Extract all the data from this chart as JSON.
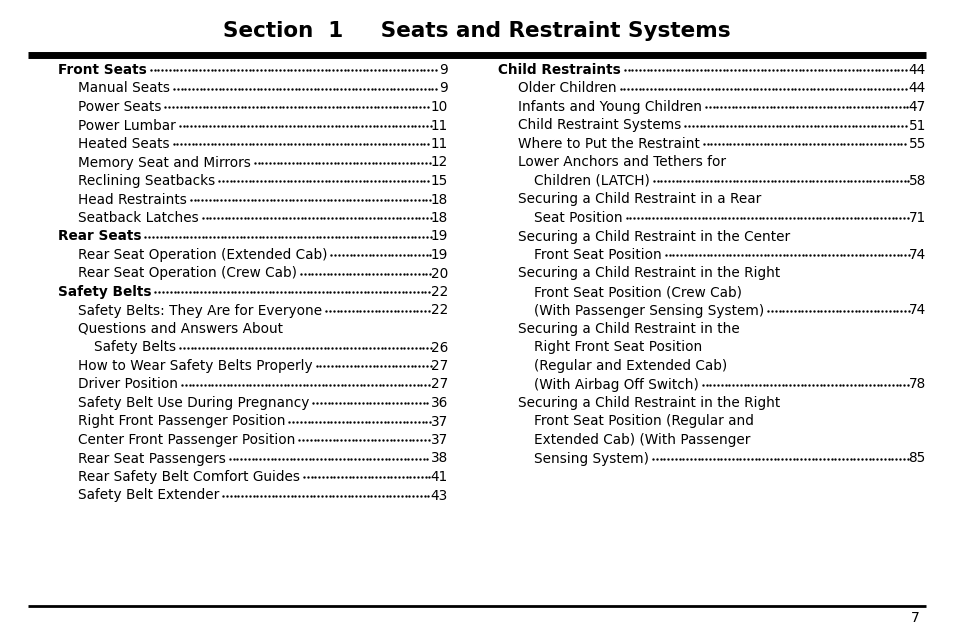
{
  "title": "Section  1     Seats and Restraint Systems",
  "background_color": "#ffffff",
  "text_color": "#000000",
  "page_number": "7",
  "left_column": [
    {
      "text": "Front Seats",
      "bold": true,
      "indent": 0,
      "dots": true,
      "page": "9"
    },
    {
      "text": "Manual Seats",
      "bold": false,
      "indent": 1,
      "dots": true,
      "page": "9"
    },
    {
      "text": "Power Seats",
      "bold": false,
      "indent": 1,
      "dots": true,
      "page": "10"
    },
    {
      "text": "Power Lumbar",
      "bold": false,
      "indent": 1,
      "dots": true,
      "page": "11"
    },
    {
      "text": "Heated Seats",
      "bold": false,
      "indent": 1,
      "dots": true,
      "page": "11"
    },
    {
      "text": "Memory Seat and Mirrors",
      "bold": false,
      "indent": 1,
      "dots": true,
      "page": "12"
    },
    {
      "text": "Reclining Seatbacks",
      "bold": false,
      "indent": 1,
      "dots": true,
      "page": "15"
    },
    {
      "text": "Head Restraints",
      "bold": false,
      "indent": 1,
      "dots": true,
      "page": "18"
    },
    {
      "text": "Seatback Latches",
      "bold": false,
      "indent": 1,
      "dots": true,
      "page": "18"
    },
    {
      "text": "Rear Seats",
      "bold": true,
      "indent": 0,
      "dots": true,
      "page": "19"
    },
    {
      "text": "Rear Seat Operation (Extended Cab)",
      "bold": false,
      "indent": 1,
      "dots": true,
      "page": "19"
    },
    {
      "text": "Rear Seat Operation (Crew Cab)",
      "bold": false,
      "indent": 1,
      "dots": true,
      "page": "20"
    },
    {
      "text": "Safety Belts",
      "bold": true,
      "indent": 0,
      "dots": true,
      "page": "22"
    },
    {
      "text": "Safety Belts: They Are for Everyone",
      "bold": false,
      "indent": 1,
      "dots": true,
      "page": "22"
    },
    {
      "text": "Questions and Answers About",
      "bold": false,
      "indent": 1,
      "dots": false,
      "page": ""
    },
    {
      "text": "Safety Belts",
      "bold": false,
      "indent": 2,
      "dots": true,
      "page": "26"
    },
    {
      "text": "How to Wear Safety Belts Properly",
      "bold": false,
      "indent": 1,
      "dots": true,
      "page": "27"
    },
    {
      "text": "Driver Position",
      "bold": false,
      "indent": 1,
      "dots": true,
      "page": "27"
    },
    {
      "text": "Safety Belt Use During Pregnancy",
      "bold": false,
      "indent": 1,
      "dots": true,
      "page": "36"
    },
    {
      "text": "Right Front Passenger Position",
      "bold": false,
      "indent": 1,
      "dots": true,
      "page": "37"
    },
    {
      "text": "Center Front Passenger Position",
      "bold": false,
      "indent": 1,
      "dots": true,
      "page": "37"
    },
    {
      "text": "Rear Seat Passengers",
      "bold": false,
      "indent": 1,
      "dots": true,
      "page": "38"
    },
    {
      "text": "Rear Safety Belt Comfort Guides",
      "bold": false,
      "indent": 1,
      "dots": true,
      "page": "41"
    },
    {
      "text": "Safety Belt Extender",
      "bold": false,
      "indent": 1,
      "dots": true,
      "page": "43"
    }
  ],
  "right_column": [
    {
      "text": "Child Restraints",
      "bold": true,
      "indent": 0,
      "dots": true,
      "page": "44"
    },
    {
      "text": "Older Children",
      "bold": false,
      "indent": 1,
      "dots": true,
      "page": "44"
    },
    {
      "text": "Infants and Young Children",
      "bold": false,
      "indent": 1,
      "dots": true,
      "page": "47"
    },
    {
      "text": "Child Restraint Systems",
      "bold": false,
      "indent": 1,
      "dots": true,
      "page": "51"
    },
    {
      "text": "Where to Put the Restraint",
      "bold": false,
      "indent": 1,
      "dots": true,
      "page": "55"
    },
    {
      "text": "Lower Anchors and Tethers for",
      "bold": false,
      "indent": 1,
      "dots": false,
      "page": ""
    },
    {
      "text": "Children (LATCH)",
      "bold": false,
      "indent": 2,
      "dots": true,
      "page": "58"
    },
    {
      "text": "Securing a Child Restraint in a Rear",
      "bold": false,
      "indent": 1,
      "dots": false,
      "page": ""
    },
    {
      "text": "Seat Position",
      "bold": false,
      "indent": 2,
      "dots": true,
      "page": "71"
    },
    {
      "text": "Securing a Child Restraint in the Center",
      "bold": false,
      "indent": 1,
      "dots": false,
      "page": ""
    },
    {
      "text": "Front Seat Position",
      "bold": false,
      "indent": 2,
      "dots": true,
      "page": "74"
    },
    {
      "text": "Securing a Child Restraint in the Right",
      "bold": false,
      "indent": 1,
      "dots": false,
      "page": ""
    },
    {
      "text": "Front Seat Position (Crew Cab)",
      "bold": false,
      "indent": 2,
      "dots": false,
      "page": ""
    },
    {
      "text": "(With Passenger Sensing System)",
      "bold": false,
      "indent": 2,
      "dots": true,
      "page": "74"
    },
    {
      "text": "Securing a Child Restraint in the",
      "bold": false,
      "indent": 1,
      "dots": false,
      "page": ""
    },
    {
      "text": "Right Front Seat Position",
      "bold": false,
      "indent": 2,
      "dots": false,
      "page": ""
    },
    {
      "text": "(Regular and Extended Cab)",
      "bold": false,
      "indent": 2,
      "dots": false,
      "page": ""
    },
    {
      "text": "(With Airbag Off Switch)",
      "bold": false,
      "indent": 2,
      "dots": true,
      "page": "78"
    },
    {
      "text": "Securing a Child Restraint in the Right",
      "bold": false,
      "indent": 1,
      "dots": false,
      "page": ""
    },
    {
      "text": "Front Seat Position (Regular and",
      "bold": false,
      "indent": 2,
      "dots": false,
      "page": ""
    },
    {
      "text": "Extended Cab) (With Passenger",
      "bold": false,
      "indent": 2,
      "dots": false,
      "page": ""
    },
    {
      "text": "Sensing System)",
      "bold": false,
      "indent": 2,
      "dots": true,
      "page": "85"
    }
  ]
}
